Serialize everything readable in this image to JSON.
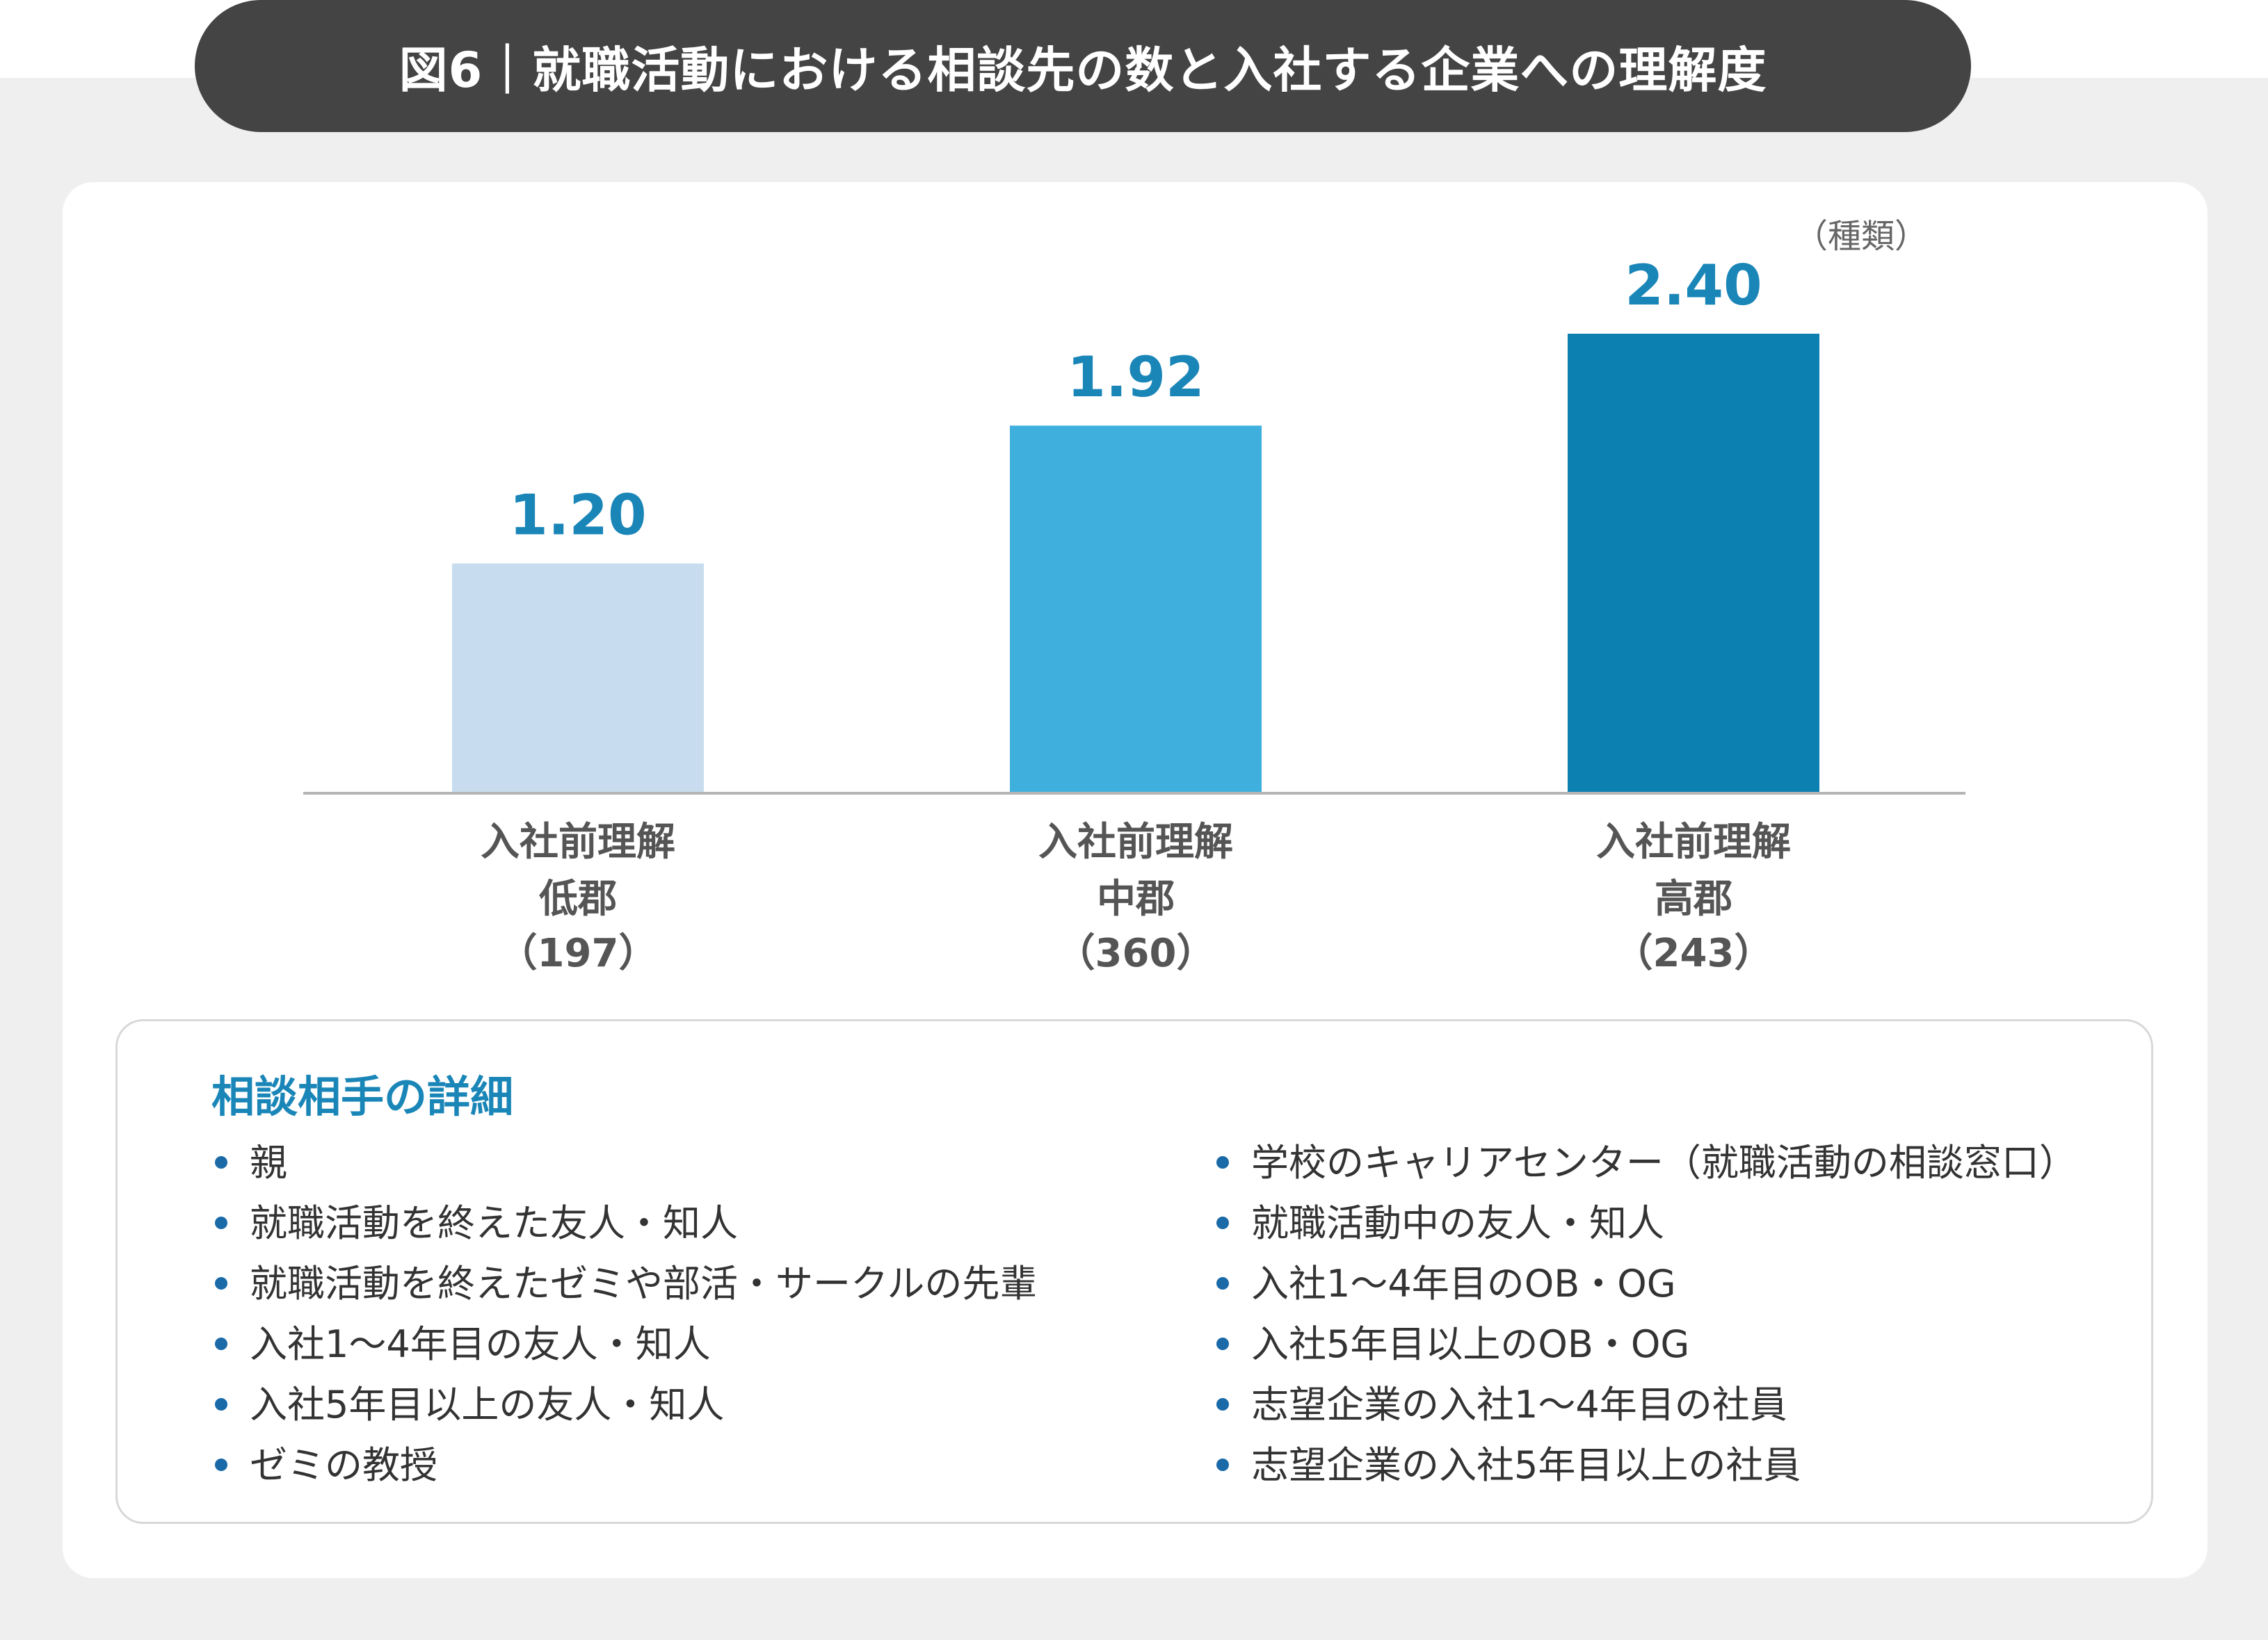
{
  "title": "図6｜就職活動における相談先の数と入社する企業への理解度",
  "unit": "（種類）",
  "chart_data": {
    "type": "bar",
    "categories": [
      {
        "line1": "入社前理解",
        "line2": "低郡",
        "line3": "（197）"
      },
      {
        "line1": "入社前理解",
        "line2": "中郡",
        "line3": "（360）"
      },
      {
        "line1": "入社前理解",
        "line2": "高郡",
        "line3": "（243）"
      }
    ],
    "values": [
      1.2,
      1.92,
      2.4
    ],
    "value_labels": [
      "1.20",
      "1.92",
      "2.40"
    ],
    "colors": [
      "#c7ddef",
      "#3fb0dd",
      "#0b80b1"
    ],
    "value_label_color": "#1a86b8",
    "ylim": [
      0,
      2.4
    ],
    "grid": false,
    "legend": "none"
  },
  "details": {
    "heading": "相談相手の詳細",
    "left": [
      "親",
      "就職活動を終えた友人・知人",
      "就職活動を終えたゼミや部活・サークルの先輩",
      "入社1〜4年目の友人・知人",
      "入社5年目以上の友人・知人",
      "ゼミの教授"
    ],
    "right": [
      "学校のキャリアセンター（就職活動の相談窓口）",
      "就職活動中の友人・知人",
      "入社1〜4年目のOB・OG",
      "入社5年目以上のOB・OG",
      "志望企業の入社1〜4年目の社員",
      "志望企業の入社5年目以上の社員"
    ]
  }
}
